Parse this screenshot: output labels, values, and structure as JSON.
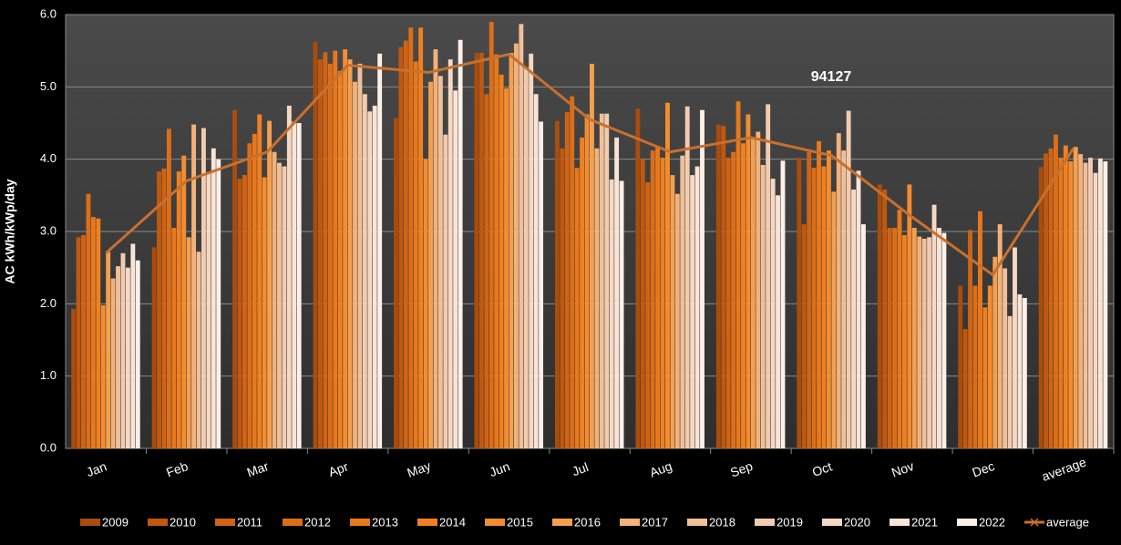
{
  "chart_data": {
    "type": "bar",
    "y_label": "AC kWh/kWp/day",
    "annotation": "94127",
    "categories": [
      "Jan",
      "Feb",
      "Mar",
      "Apr",
      "May",
      "Jun",
      "Jul",
      "Aug",
      "Sep",
      "Oct",
      "Nov",
      "Dec",
      "average"
    ],
    "ylim": [
      0,
      6
    ],
    "yticks": [
      {
        "value": 0,
        "label": "0.0"
      },
      {
        "value": 1,
        "label": "1.0"
      },
      {
        "value": 2,
        "label": "2.0"
      },
      {
        "value": 3,
        "label": "3.0"
      },
      {
        "value": 4,
        "label": "4.0"
      },
      {
        "value": 5,
        "label": "5.0"
      },
      {
        "value": 6,
        "label": "6.0"
      }
    ],
    "grid": true,
    "legend": "bottom",
    "series": [
      {
        "name": "2009",
        "color": "#a94c0c",
        "values": [
          1.93,
          2.78,
          4.68,
          5.62,
          4.57,
          5.47,
          4.53,
          4.7,
          4.48,
          4.02,
          3.65,
          2.25,
          3.89
        ]
      },
      {
        "name": "2010",
        "color": "#c05810",
        "values": [
          2.92,
          3.83,
          3.73,
          5.38,
          5.55,
          5.47,
          4.15,
          4.0,
          4.46,
          3.1,
          3.58,
          1.65,
          4.08
        ]
      },
      {
        "name": "2011",
        "color": "#d06414",
        "values": [
          2.95,
          3.87,
          3.78,
          5.48,
          5.64,
          4.9,
          4.65,
          3.68,
          4.02,
          4.1,
          3.05,
          3.02,
          4.15
        ]
      },
      {
        "name": "2012",
        "color": "#dc6e18",
        "values": [
          3.52,
          4.42,
          4.22,
          5.32,
          5.82,
          5.9,
          4.87,
          4.12,
          4.1,
          3.88,
          3.05,
          2.25,
          4.34
        ]
      },
      {
        "name": "2013",
        "color": "#e8781c",
        "values": [
          3.2,
          3.05,
          4.35,
          5.5,
          5.35,
          5.45,
          3.88,
          4.18,
          4.8,
          4.25,
          3.3,
          3.28,
          4.02
        ]
      },
      {
        "name": "2014",
        "color": "#f08020",
        "values": [
          3.18,
          3.83,
          4.62,
          5.22,
          5.82,
          5.17,
          4.3,
          4.02,
          4.22,
          3.9,
          2.95,
          1.95,
          4.19
        ]
      },
      {
        "name": "2015",
        "color": "#f48c30",
        "values": [
          1.98,
          4.05,
          3.75,
          5.52,
          4.0,
          4.98,
          4.62,
          4.78,
          4.62,
          4.12,
          3.65,
          2.25,
          3.97
        ]
      },
      {
        "name": "2016",
        "color": "#f4a050",
        "values": [
          2.72,
          2.92,
          4.53,
          5.38,
          5.07,
          5.47,
          5.32,
          3.78,
          4.28,
          3.55,
          3.05,
          2.65,
          4.17
        ]
      },
      {
        "name": "2017",
        "color": "#f2b27a",
        "values": [
          2.35,
          4.48,
          4.1,
          5.07,
          5.52,
          5.6,
          4.15,
          3.52,
          4.38,
          4.36,
          2.93,
          3.1,
          4.07
        ]
      },
      {
        "name": "2018",
        "color": "#f0c09a",
        "values": [
          2.52,
          2.72,
          3.95,
          5.32,
          5.15,
          5.87,
          4.63,
          4.05,
          3.92,
          4.12,
          2.9,
          2.49,
          3.95
        ]
      },
      {
        "name": "2019",
        "color": "#f2ccb0",
        "values": [
          2.7,
          4.43,
          3.9,
          4.9,
          4.34,
          5.27,
          4.63,
          4.73,
          4.76,
          4.67,
          2.92,
          1.83,
          4.02
        ]
      },
      {
        "name": "2020",
        "color": "#f6d8c4",
        "values": [
          2.5,
          3.82,
          4.74,
          4.66,
          5.38,
          5.46,
          3.72,
          3.78,
          3.73,
          3.58,
          3.37,
          2.78,
          3.81
        ]
      },
      {
        "name": "2021",
        "color": "#f9e4d6",
        "values": [
          2.83,
          4.15,
          4.52,
          4.74,
          4.95,
          4.9,
          4.3,
          3.9,
          3.5,
          3.84,
          3.05,
          2.13,
          4.01
        ]
      },
      {
        "name": "2022",
        "color": "#fcf0e8",
        "values": [
          2.6,
          4.0,
          4.5,
          5.46,
          5.65,
          4.52,
          3.7,
          4.68,
          3.98,
          3.1,
          2.98,
          2.08,
          3.97
        ]
      },
      {
        "name": "average",
        "color": "#c8702e",
        "type": "line",
        "values": [
          2.7,
          3.7,
          4.1,
          5.3,
          5.2,
          5.45,
          4.55,
          4.1,
          4.3,
          4.05,
          3.2,
          2.4,
          4.15
        ]
      }
    ]
  }
}
